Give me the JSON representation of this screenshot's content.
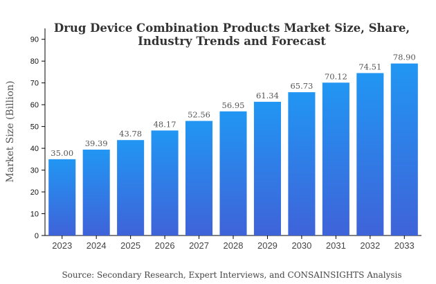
{
  "chart_data": {
    "type": "bar",
    "title_lines": [
      "Drug Device Combination Products Market Size, Share,",
      "Industry Trends and Forecast"
    ],
    "xlabel": "",
    "ylabel": "Market Size (Billion)",
    "categories": [
      "2023",
      "2024",
      "2025",
      "2026",
      "2027",
      "2028",
      "2029",
      "2030",
      "2031",
      "2032",
      "2033"
    ],
    "values": [
      35.0,
      39.39,
      43.78,
      48.17,
      52.56,
      56.95,
      61.34,
      65.73,
      70.12,
      74.51,
      78.9
    ],
    "value_labels": [
      "35.00",
      "39.39",
      "43.78",
      "48.17",
      "52.56",
      "56.95",
      "61.34",
      "65.73",
      "70.12",
      "74.51",
      "78.90"
    ],
    "ylim": [
      0,
      95
    ],
    "yticks": [
      0,
      10,
      20,
      30,
      40,
      50,
      60,
      70,
      80,
      90
    ],
    "grid": false,
    "legend": "none",
    "colors": {
      "bar_top": "#2196f3",
      "bar_bottom": "#3f63d9",
      "axis": "#000000"
    }
  },
  "source": "Source: Secondary Research, Expert Interviews, and CONSAINSIGHTS Analysis"
}
